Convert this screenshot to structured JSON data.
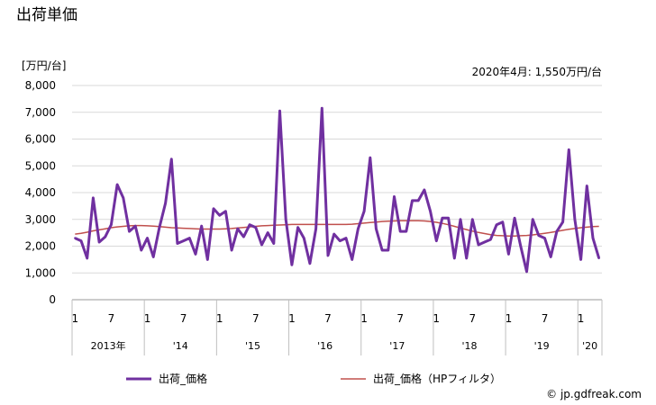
{
  "page_title": "出荷単価",
  "chart_data": {
    "type": "line",
    "title": "出荷単価",
    "ylabel": "[万円/台]",
    "annotation": "2020年4月: 1,550万円/台",
    "ylim": [
      0,
      8000
    ],
    "yticks": [
      "0",
      "1,000",
      "2,000",
      "3,000",
      "4,000",
      "5,000",
      "6,000",
      "7,000",
      "8,000"
    ],
    "month_ticks": [
      "1",
      "7",
      "1",
      "7",
      "1",
      "7",
      "1",
      "7",
      "1",
      "7",
      "1",
      "7",
      "1",
      "7",
      "1"
    ],
    "year_labels": [
      "2013年",
      "'14",
      "'15",
      "'16",
      "'17",
      "'18",
      "'19",
      "'20"
    ],
    "x": [
      "2013-01",
      "2013-02",
      "2013-03",
      "2013-04",
      "2013-05",
      "2013-06",
      "2013-07",
      "2013-08",
      "2013-09",
      "2013-10",
      "2013-11",
      "2013-12",
      "2014-01",
      "2014-02",
      "2014-03",
      "2014-04",
      "2014-05",
      "2014-06",
      "2014-07",
      "2014-08",
      "2014-09",
      "2014-10",
      "2014-11",
      "2014-12",
      "2015-01",
      "2015-02",
      "2015-03",
      "2015-04",
      "2015-05",
      "2015-06",
      "2015-07",
      "2015-08",
      "2015-09",
      "2015-10",
      "2015-11",
      "2015-12",
      "2016-01",
      "2016-02",
      "2016-03",
      "2016-04",
      "2016-05",
      "2016-06",
      "2016-07",
      "2016-08",
      "2016-09",
      "2016-10",
      "2016-11",
      "2016-12",
      "2017-01",
      "2017-02",
      "2017-03",
      "2017-04",
      "2017-05",
      "2017-06",
      "2017-07",
      "2017-08",
      "2017-09",
      "2017-10",
      "2017-11",
      "2017-12",
      "2018-01",
      "2018-02",
      "2018-03",
      "2018-04",
      "2018-05",
      "2018-06",
      "2018-07",
      "2018-08",
      "2018-09",
      "2018-10",
      "2018-11",
      "2018-12",
      "2019-01",
      "2019-02",
      "2019-03",
      "2019-04",
      "2019-05",
      "2019-06",
      "2019-07",
      "2019-08",
      "2019-09",
      "2019-10",
      "2019-11",
      "2019-12",
      "2020-01",
      "2020-02",
      "2020-03",
      "2020-04"
    ],
    "series": [
      {
        "name": "出荷_価格",
        "color": "#7030a0",
        "values": [
          2300,
          2200,
          1550,
          3800,
          2150,
          2350,
          2800,
          4300,
          3800,
          2550,
          2750,
          1850,
          2300,
          1600,
          2700,
          3600,
          5250,
          2100,
          2200,
          2300,
          1700,
          2750,
          1500,
          3400,
          3150,
          3300,
          1850,
          2650,
          2350,
          2800,
          2700,
          2050,
          2500,
          2100,
          7050,
          3000,
          1300,
          2700,
          2300,
          1350,
          2650,
          7150,
          1650,
          2450,
          2200,
          2300,
          1500,
          2650,
          3300,
          5300,
          2650,
          1850,
          1850,
          3850,
          2550,
          2550,
          3700,
          3700,
          4100,
          3300,
          2200,
          3050,
          3050,
          1550,
          3000,
          1550,
          3000,
          2050,
          2150,
          2250,
          2800,
          2900,
          1700,
          3050,
          2000,
          1050,
          3000,
          2400,
          2300,
          1600,
          2550,
          2900,
          5600,
          3000,
          1500,
          4250,
          2300,
          1550
        ]
      },
      {
        "name": "出荷_価格（HPフィルタ）",
        "color": "#c0504d",
        "values": [
          2450,
          2480,
          2520,
          2570,
          2610,
          2650,
          2690,
          2720,
          2740,
          2760,
          2770,
          2770,
          2760,
          2750,
          2730,
          2710,
          2690,
          2680,
          2670,
          2660,
          2650,
          2640,
          2640,
          2640,
          2640,
          2650,
          2660,
          2680,
          2700,
          2720,
          2740,
          2760,
          2770,
          2780,
          2790,
          2800,
          2810,
          2810,
          2810,
          2810,
          2810,
          2810,
          2810,
          2810,
          2810,
          2810,
          2820,
          2840,
          2860,
          2880,
          2900,
          2920,
          2930,
          2940,
          2950,
          2950,
          2950,
          2950,
          2940,
          2920,
          2890,
          2850,
          2800,
          2740,
          2680,
          2620,
          2560,
          2510,
          2470,
          2430,
          2400,
          2390,
          2380,
          2380,
          2390,
          2400,
          2420,
          2450,
          2480,
          2510,
          2550,
          2590,
          2630,
          2660,
          2690,
          2710,
          2730,
          2740
        ]
      }
    ]
  },
  "footer": {
    "credit": "© jp.gdfreak.com"
  }
}
